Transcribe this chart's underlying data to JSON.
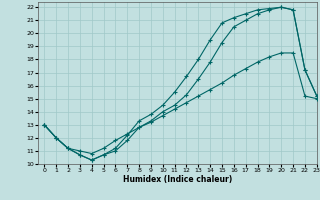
{
  "xlabel": "Humidex (Indice chaleur)",
  "bg_color": "#c2e0e0",
  "line_color": "#006666",
  "grid_color": "#a0c8c8",
  "xlim": [
    -0.5,
    23
  ],
  "ylim": [
    10,
    22.4
  ],
  "xticks": [
    0,
    1,
    2,
    3,
    4,
    5,
    6,
    7,
    8,
    9,
    10,
    11,
    12,
    13,
    14,
    15,
    16,
    17,
    18,
    19,
    20,
    21,
    22,
    23
  ],
  "yticks": [
    10,
    11,
    12,
    13,
    14,
    15,
    16,
    17,
    18,
    19,
    20,
    21,
    22
  ],
  "curve1_x": [
    0,
    1,
    2,
    3,
    4,
    5,
    6,
    7,
    8,
    9,
    10,
    11,
    12,
    13,
    14,
    15,
    16,
    17,
    18,
    19,
    20,
    21,
    22,
    23
  ],
  "curve1_y": [
    13.0,
    12.0,
    11.2,
    10.7,
    10.3,
    10.7,
    11.2,
    12.2,
    13.3,
    13.8,
    14.5,
    15.5,
    16.7,
    18.0,
    19.5,
    20.8,
    21.2,
    21.5,
    21.8,
    21.9,
    22.0,
    21.8,
    17.2,
    15.2
  ],
  "curve2_x": [
    0,
    1,
    2,
    3,
    4,
    5,
    6,
    7,
    8,
    9,
    10,
    11,
    12,
    13,
    14,
    15,
    16,
    17,
    18,
    19,
    20,
    21,
    22,
    23
  ],
  "curve2_y": [
    13.0,
    12.0,
    11.2,
    10.7,
    10.3,
    10.7,
    11.0,
    11.8,
    12.8,
    13.3,
    14.0,
    14.5,
    15.3,
    16.5,
    17.8,
    19.3,
    20.5,
    21.0,
    21.5,
    21.8,
    22.0,
    21.8,
    17.2,
    15.2
  ],
  "curve3_x": [
    0,
    1,
    2,
    3,
    4,
    5,
    6,
    7,
    8,
    9,
    10,
    11,
    12,
    13,
    14,
    15,
    16,
    17,
    18,
    19,
    20,
    21,
    22,
    23
  ],
  "curve3_y": [
    13.0,
    12.0,
    11.2,
    11.0,
    10.8,
    11.2,
    11.8,
    12.3,
    12.8,
    13.2,
    13.7,
    14.2,
    14.7,
    15.2,
    15.7,
    16.2,
    16.8,
    17.3,
    17.8,
    18.2,
    18.5,
    18.5,
    15.2,
    15.0
  ]
}
